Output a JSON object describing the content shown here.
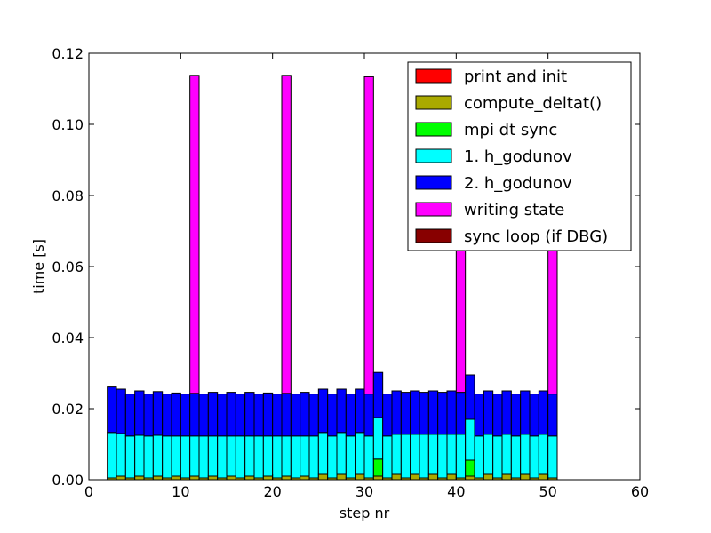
{
  "chart_data": {
    "type": "bar",
    "stacked": true,
    "xlabel": "step nr",
    "ylabel": "time [s]",
    "xlim": [
      0,
      60
    ],
    "ylim": [
      0,
      0.12
    ],
    "xticks": [
      "0",
      "10",
      "20",
      "30",
      "40",
      "50",
      "60"
    ],
    "yticks": [
      "0.00",
      "0.02",
      "0.04",
      "0.06",
      "0.08",
      "0.10",
      "0.12"
    ],
    "bar_width": 1,
    "grid": false,
    "legend_position": "top-right",
    "x": [
      2,
      3,
      4,
      5,
      6,
      7,
      8,
      9,
      10,
      11,
      12,
      13,
      14,
      15,
      16,
      17,
      18,
      19,
      20,
      21,
      22,
      23,
      24,
      25,
      26,
      27,
      28,
      29,
      30,
      31,
      32,
      33,
      34,
      35,
      36,
      37,
      38,
      39,
      40,
      41,
      42,
      43,
      44,
      45,
      46,
      47,
      48,
      49,
      50
    ],
    "series": [
      {
        "name": "print and init",
        "color": "#ff0000",
        "values": [
          0,
          0,
          0,
          0,
          0,
          0,
          0,
          0,
          0,
          0,
          0,
          0,
          0,
          0,
          0,
          0,
          0,
          0,
          0,
          0,
          0,
          0,
          0,
          0,
          0,
          0,
          0,
          0,
          0,
          0,
          0,
          0,
          0,
          0,
          0,
          0,
          0,
          0,
          0,
          0,
          0,
          0,
          0,
          0,
          0,
          0,
          0,
          0,
          0
        ]
      },
      {
        "name": "compute_deltat()",
        "color": "#aaaa00",
        "values": [
          0.0005,
          0.001,
          0.0005,
          0.001,
          0.0005,
          0.001,
          0.0005,
          0.001,
          0.0005,
          0.001,
          0.0005,
          0.001,
          0.0005,
          0.001,
          0.0005,
          0.001,
          0.0005,
          0.001,
          0.0005,
          0.001,
          0.0005,
          0.001,
          0.0005,
          0.0015,
          0.0005,
          0.0015,
          0.0005,
          0.0015,
          0.0005,
          0.001,
          0.0005,
          0.0015,
          0.0005,
          0.0015,
          0.0005,
          0.0015,
          0.0005,
          0.0015,
          0.0005,
          0.001,
          0.0005,
          0.0015,
          0.0005,
          0.0015,
          0.0005,
          0.0015,
          0.0005,
          0.0015,
          0.0005
        ]
      },
      {
        "name": "mpi dt sync",
        "color": "#00ff00",
        "values": [
          0,
          0,
          0,
          0,
          0,
          0,
          0,
          0,
          0,
          0,
          0,
          0,
          0,
          0,
          0,
          0,
          0,
          0,
          0,
          0,
          0,
          0,
          0,
          0,
          0,
          0,
          0,
          0,
          0,
          0.0048,
          0,
          0,
          0,
          0,
          0,
          0,
          0,
          0,
          0,
          0.0045,
          0,
          0,
          0,
          0,
          0,
          0,
          0,
          0,
          0
        ]
      },
      {
        "name": "1. h_godunov",
        "color": "#00ffff",
        "values": [
          0.0128,
          0.012,
          0.0118,
          0.0115,
          0.0118,
          0.0115,
          0.0118,
          0.0113,
          0.0118,
          0.0113,
          0.0118,
          0.0113,
          0.0118,
          0.0113,
          0.0118,
          0.0113,
          0.0118,
          0.0113,
          0.0118,
          0.0113,
          0.0118,
          0.0113,
          0.0118,
          0.0118,
          0.0118,
          0.0118,
          0.0118,
          0.0118,
          0.0118,
          0.0117,
          0.0118,
          0.0113,
          0.0123,
          0.0113,
          0.0123,
          0.0113,
          0.0123,
          0.0113,
          0.0123,
          0.0115,
          0.0118,
          0.0113,
          0.0118,
          0.0113,
          0.0118,
          0.0113,
          0.0118,
          0.0113,
          0.0118
        ]
      },
      {
        "name": "2. h_godunov",
        "color": "#0000ff",
        "values": [
          0.0128,
          0.0125,
          0.0118,
          0.0125,
          0.0118,
          0.0123,
          0.0118,
          0.0121,
          0.0118,
          0.012,
          0.0118,
          0.0123,
          0.0118,
          0.0123,
          0.0118,
          0.0123,
          0.0118,
          0.0121,
          0.0118,
          0.012,
          0.0118,
          0.0123,
          0.0118,
          0.0122,
          0.0118,
          0.0122,
          0.0118,
          0.0122,
          0.0118,
          0.0127,
          0.0118,
          0.0122,
          0.0118,
          0.0122,
          0.0118,
          0.0122,
          0.0118,
          0.0122,
          0.0118,
          0.0125,
          0.0118,
          0.0122,
          0.0118,
          0.0122,
          0.0118,
          0.0122,
          0.0118,
          0.0122,
          0.0118
        ]
      },
      {
        "name": "writing state",
        "color": "#ff00ff",
        "values": [
          0,
          0,
          0,
          0,
          0,
          0,
          0,
          0,
          0,
          0.0895,
          0,
          0,
          0,
          0,
          0,
          0,
          0,
          0,
          0,
          0.0895,
          0,
          0,
          0,
          0,
          0,
          0,
          0,
          0,
          0.0893,
          0,
          0,
          0,
          0,
          0,
          0,
          0,
          0,
          0,
          0.0893,
          0,
          0,
          0,
          0,
          0,
          0,
          0,
          0,
          0,
          0.0893
        ]
      },
      {
        "name": "sync loop (if DBG)",
        "color": "#880000",
        "values": [
          0,
          0,
          0,
          0,
          0,
          0,
          0,
          0,
          0,
          0,
          0,
          0,
          0,
          0,
          0,
          0,
          0,
          0,
          0,
          0,
          0,
          0,
          0,
          0,
          0,
          0,
          0,
          0,
          0,
          0,
          0,
          0,
          0,
          0,
          0,
          0,
          0,
          0,
          0,
          0,
          0,
          0,
          0,
          0,
          0,
          0,
          0,
          0,
          0
        ]
      }
    ]
  }
}
